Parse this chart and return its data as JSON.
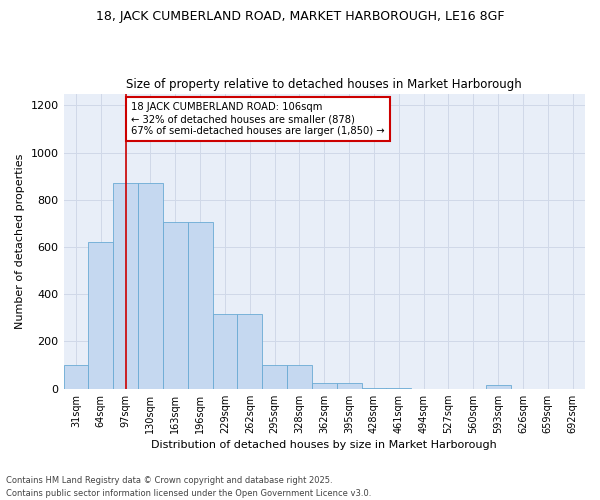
{
  "title1": "18, JACK CUMBERLAND ROAD, MARKET HARBOROUGH, LE16 8GF",
  "title2": "Size of property relative to detached houses in Market Harborough",
  "xlabel": "Distribution of detached houses by size in Market Harborough",
  "ylabel": "Number of detached properties",
  "categories": [
    "31sqm",
    "64sqm",
    "97sqm",
    "130sqm",
    "163sqm",
    "196sqm",
    "229sqm",
    "262sqm",
    "295sqm",
    "328sqm",
    "362sqm",
    "395sqm",
    "428sqm",
    "461sqm",
    "494sqm",
    "527sqm",
    "560sqm",
    "593sqm",
    "626sqm",
    "659sqm",
    "692sqm"
  ],
  "bar_heights": [
    100,
    620,
    870,
    870,
    705,
    705,
    315,
    315,
    100,
    100,
    25,
    25,
    5,
    5,
    0,
    0,
    0,
    15,
    0,
    0,
    0
  ],
  "bar_color": "#c5d8f0",
  "bar_edge_color": "#6aaad4",
  "grid_color": "#d0d8e8",
  "bg_color": "#e8eef8",
  "vline_x_idx": 2.0,
  "vline_color": "#cc0000",
  "annotation_text": "18 JACK CUMBERLAND ROAD: 106sqm\n← 32% of detached houses are smaller (878)\n67% of semi-detached houses are larger (1,850) →",
  "annotation_box_color": "white",
  "annotation_box_edge": "#cc0000",
  "footer1": "Contains HM Land Registry data © Crown copyright and database right 2025.",
  "footer2": "Contains public sector information licensed under the Open Government Licence v3.0.",
  "ylim": [
    0,
    1250
  ],
  "yticks": [
    0,
    200,
    400,
    600,
    800,
    1000,
    1200
  ]
}
